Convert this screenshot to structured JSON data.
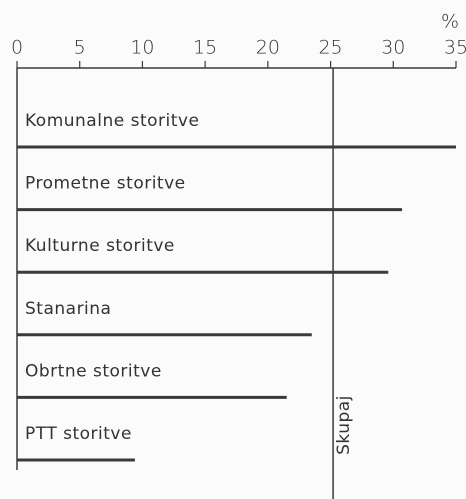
{
  "chart_data": {
    "type": "bar",
    "orientation": "horizontal",
    "axis_label": "%",
    "categories": [
      "Komunalne storitve",
      "Prometne storitve",
      "Kulturne storitve",
      "Stanarina",
      "Obrtne storitve",
      "PTT storitve"
    ],
    "values": [
      35,
      30.7,
      29.6,
      23.5,
      21.5,
      9.4
    ],
    "color": "#3a3a3a",
    "xlim": [
      0,
      35
    ],
    "xticks": [
      0,
      5,
      10,
      15,
      20,
      25,
      30,
      35
    ],
    "reference": {
      "label": "Skupaj",
      "value": 25.2
    }
  }
}
